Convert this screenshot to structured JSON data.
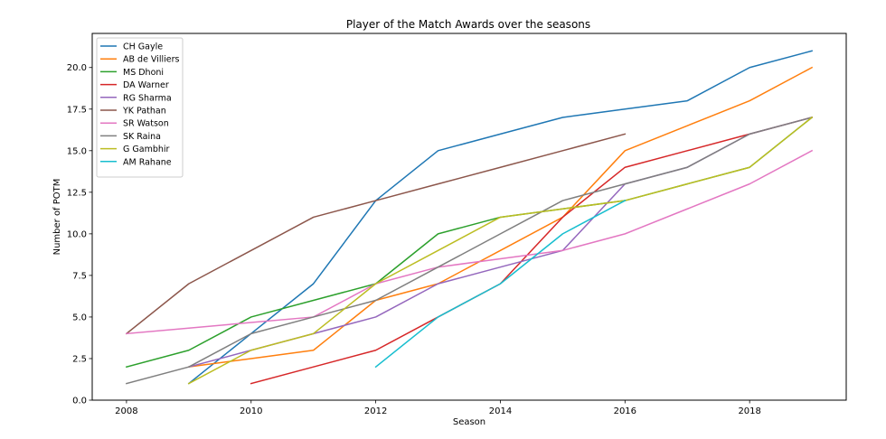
{
  "chart_data": {
    "type": "line",
    "title": "Player of the Match Awards over the seasons",
    "xlabel": "Season",
    "ylabel": "Number of POTM",
    "xlim": [
      2007.45,
      2019.55
    ],
    "ylim": [
      0,
      22.05
    ],
    "xticks": [
      2008,
      2010,
      2012,
      2014,
      2016,
      2018
    ],
    "xtick_labels": [
      "2008",
      "2010",
      "2012",
      "2014",
      "2016",
      "2018"
    ],
    "yticks": [
      0,
      2.5,
      5,
      7.5,
      10,
      12.5,
      15,
      17.5,
      20
    ],
    "ytick_labels": [
      "0.0",
      "2.5",
      "5.0",
      "7.5",
      "10.0",
      "12.5",
      "15.0",
      "17.5",
      "20.0"
    ],
    "grid": false,
    "legend_position": "upper-left",
    "series": [
      {
        "name": "CH Gayle",
        "color": "#1f77b4",
        "x": [
          2009,
          2010,
          2011,
          2012,
          2013,
          2014,
          2015,
          2016,
          2017,
          2018,
          2019
        ],
        "y": [
          1,
          4,
          7,
          12,
          15,
          16,
          17,
          17.5,
          18,
          20,
          21
        ]
      },
      {
        "name": "AB de Villiers",
        "color": "#ff7f0e",
        "x": [
          2009,
          2010,
          2011,
          2012,
          2013,
          2014,
          2015,
          2016,
          2017,
          2018,
          2019
        ],
        "y": [
          2,
          2.5,
          3,
          6,
          7,
          9,
          11,
          15,
          16.5,
          18,
          20
        ]
      },
      {
        "name": "MS Dhoni",
        "color": "#2ca02c",
        "x": [
          2008,
          2009,
          2010,
          2011,
          2012,
          2013,
          2014,
          2015,
          2016,
          2017,
          2018,
          2019
        ],
        "y": [
          2,
          3,
          5,
          6,
          7,
          10,
          11,
          11.5,
          12,
          13,
          14,
          17
        ]
      },
      {
        "name": "DA Warner",
        "color": "#d62728",
        "x": [
          2010,
          2011,
          2012,
          2013,
          2014,
          2015,
          2016,
          2017,
          2018,
          2019
        ],
        "y": [
          1,
          2,
          3,
          5,
          7,
          11,
          14,
          15,
          16,
          17
        ]
      },
      {
        "name": "RG Sharma",
        "color": "#9467bd",
        "x": [
          2009,
          2010,
          2011,
          2012,
          2013,
          2014,
          2015,
          2016,
          2017,
          2018,
          2019
        ],
        "y": [
          2,
          3,
          4,
          5,
          7,
          8,
          9,
          13,
          14,
          16,
          17
        ]
      },
      {
        "name": "YK Pathan",
        "color": "#8c564b",
        "x": [
          2008,
          2009,
          2010,
          2011,
          2012,
          2013,
          2014,
          2015,
          2016
        ],
        "y": [
          4,
          7,
          9,
          11,
          12,
          13,
          14,
          15,
          16
        ]
      },
      {
        "name": "SR Watson",
        "color": "#e377c2",
        "x": [
          2008,
          2009,
          2010,
          2011,
          2012,
          2013,
          2014,
          2015,
          2016,
          2017,
          2018,
          2019
        ],
        "y": [
          4,
          4.33,
          4.67,
          5,
          7,
          8,
          8.5,
          9,
          10,
          11.5,
          13,
          15
        ]
      },
      {
        "name": "SK Raina",
        "color": "#7f7f7f",
        "x": [
          2008,
          2009,
          2010,
          2011,
          2012,
          2013,
          2014,
          2015,
          2016,
          2017,
          2018,
          2019
        ],
        "y": [
          1,
          2,
          4,
          5,
          6,
          8,
          10,
          12,
          13,
          14,
          16,
          17
        ]
      },
      {
        "name": "G Gambhir",
        "color": "#bcbd22",
        "x": [
          2009,
          2010,
          2011,
          2012,
          2013,
          2014,
          2015,
          2016,
          2017,
          2018,
          2019
        ],
        "y": [
          1,
          3,
          4,
          7,
          9,
          11,
          11.5,
          12,
          13,
          14,
          17
        ]
      },
      {
        "name": "AM Rahane",
        "color": "#17becf",
        "x": [
          2012,
          2013,
          2014,
          2015,
          2016
        ],
        "y": [
          2,
          5,
          7,
          10,
          12
        ]
      }
    ]
  }
}
